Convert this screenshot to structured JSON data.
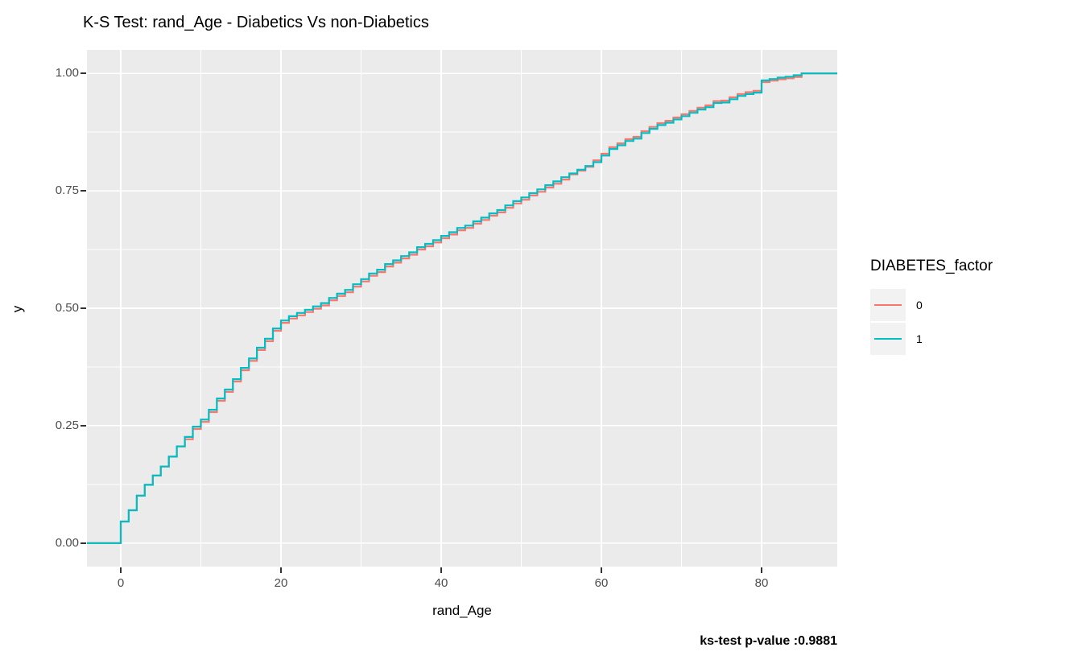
{
  "title": "K-S Test: rand_Age - Diabetics Vs non-Diabetics",
  "caption": "ks-test p-value :0.9881",
  "axes": {
    "x": {
      "label": "rand_Age",
      "tick_labels": [
        "0",
        "20",
        "40",
        "60",
        "80"
      ],
      "tick_values": [
        0,
        20,
        40,
        60,
        80
      ],
      "minor": [
        10,
        30,
        50,
        70
      ]
    },
    "y": {
      "label": "y",
      "tick_labels": [
        "0.00",
        "0.25",
        "0.50",
        "0.75",
        "1.00"
      ],
      "tick_values": [
        0,
        0.25,
        0.5,
        0.75,
        1
      ],
      "minor": [
        0.125,
        0.375,
        0.625,
        0.875
      ]
    }
  },
  "legend": {
    "title": "DIABETES_factor",
    "items": [
      {
        "label": "0",
        "color": "#F8766D"
      },
      {
        "label": "1",
        "color": "#00BFC4"
      }
    ]
  },
  "colors": {
    "panel_bg": "#EBEBEB",
    "grid": "#FFFFFF",
    "tick_text": "#4D4D4D",
    "series0": "#F8766D",
    "series1": "#00BFC4"
  },
  "chart_data": {
    "type": "line",
    "subtype": "step-ecdf",
    "title": "K-S Test: rand_Age - Diabetics Vs non-Diabetics",
    "xlabel": "rand_Age",
    "ylabel": "y",
    "legend_position": "right",
    "grid": true,
    "xlim": [
      -4.22,
      89.45
    ],
    "ylim": [
      -0.05,
      1.05
    ],
    "x": [
      0,
      1,
      2,
      3,
      4,
      5,
      6,
      7,
      8,
      9,
      10,
      11,
      12,
      13,
      14,
      15,
      16,
      17,
      18,
      19,
      20,
      21,
      22,
      23,
      24,
      25,
      26,
      27,
      28,
      29,
      30,
      31,
      32,
      33,
      34,
      35,
      36,
      37,
      38,
      39,
      40,
      41,
      42,
      43,
      44,
      45,
      46,
      47,
      48,
      49,
      50,
      51,
      52,
      53,
      54,
      55,
      56,
      57,
      58,
      59,
      60,
      61,
      62,
      63,
      64,
      65,
      66,
      67,
      68,
      69,
      70,
      71,
      72,
      73,
      74,
      75,
      76,
      77,
      78,
      79,
      80,
      81,
      82,
      83,
      84,
      85
    ],
    "series": [
      {
        "name": "0",
        "color": "#F8766D",
        "values": [
          0.046,
          0.07,
          0.101,
          0.124,
          0.144,
          0.163,
          0.184,
          0.206,
          0.221,
          0.243,
          0.258,
          0.279,
          0.303,
          0.322,
          0.344,
          0.368,
          0.388,
          0.411,
          0.43,
          0.452,
          0.469,
          0.478,
          0.485,
          0.492,
          0.499,
          0.506,
          0.517,
          0.526,
          0.534,
          0.546,
          0.557,
          0.569,
          0.577,
          0.589,
          0.597,
          0.606,
          0.614,
          0.625,
          0.632,
          0.64,
          0.649,
          0.657,
          0.666,
          0.671,
          0.68,
          0.688,
          0.697,
          0.704,
          0.714,
          0.723,
          0.731,
          0.74,
          0.748,
          0.757,
          0.765,
          0.774,
          0.785,
          0.793,
          0.801,
          0.815,
          0.829,
          0.843,
          0.851,
          0.86,
          0.865,
          0.877,
          0.886,
          0.894,
          0.899,
          0.906,
          0.913,
          0.92,
          0.927,
          0.932,
          0.941,
          0.942,
          0.949,
          0.956,
          0.96,
          0.963,
          0.9815,
          0.9845,
          0.9875,
          0.9895,
          0.9925,
          1.0
        ]
      },
      {
        "name": "1",
        "color": "#00BFC4",
        "values": [
          0.046,
          0.07,
          0.101,
          0.124,
          0.144,
          0.163,
          0.184,
          0.206,
          0.226,
          0.248,
          0.263,
          0.284,
          0.308,
          0.327,
          0.349,
          0.373,
          0.393,
          0.416,
          0.435,
          0.457,
          0.474,
          0.483,
          0.49,
          0.497,
          0.504,
          0.511,
          0.522,
          0.531,
          0.539,
          0.551,
          0.562,
          0.574,
          0.582,
          0.594,
          0.602,
          0.611,
          0.619,
          0.63,
          0.637,
          0.645,
          0.654,
          0.662,
          0.671,
          0.676,
          0.685,
          0.693,
          0.702,
          0.709,
          0.719,
          0.728,
          0.736,
          0.745,
          0.753,
          0.762,
          0.77,
          0.779,
          0.787,
          0.795,
          0.803,
          0.811,
          0.825,
          0.839,
          0.847,
          0.856,
          0.861,
          0.873,
          0.882,
          0.89,
          0.895,
          0.902,
          0.909,
          0.916,
          0.923,
          0.928,
          0.937,
          0.938,
          0.945,
          0.952,
          0.956,
          0.959,
          0.985,
          0.988,
          0.991,
          0.993,
          0.996,
          1.0
        ]
      }
    ]
  }
}
